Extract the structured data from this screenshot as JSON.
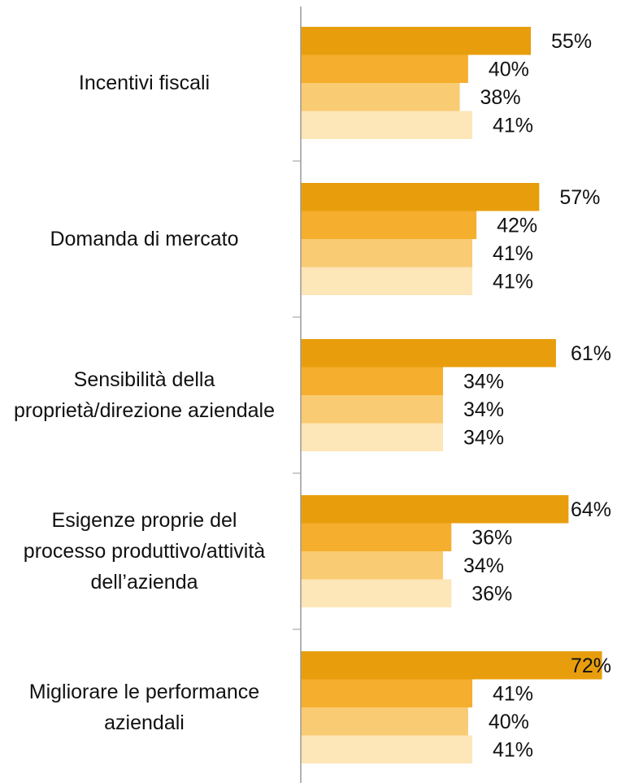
{
  "chart_data": {
    "type": "bar",
    "orientation": "horizontal",
    "categories": [
      "Incentivi fiscali",
      "Domanda di mercato",
      "Sensibilità della proprietà/direzione aziendale",
      "Esigenze proprie del processo produttivo/attività dell’azienda",
      "Migliorare le performance aziendali"
    ],
    "series": [
      {
        "color": "#e89e0c",
        "values": [
          55,
          57,
          61,
          64,
          72
        ],
        "value_labels": [
          "55%",
          "57%",
          "61%",
          "64%",
          "72%"
        ]
      },
      {
        "color": "#f5ae2d",
        "values": [
          40,
          42,
          34,
          36,
          41
        ],
        "value_labels": [
          "40%",
          "42%",
          "34%",
          "36%",
          "41%"
        ]
      },
      {
        "color": "#f9cb72",
        "values": [
          38,
          41,
          34,
          34,
          40
        ],
        "value_labels": [
          "38%",
          "41%",
          "34%",
          "34%",
          "40%"
        ]
      },
      {
        "color": "#fde6b8",
        "values": [
          41,
          41,
          34,
          36,
          41
        ],
        "value_labels": [
          "41%",
          "41%",
          "34%",
          "36%",
          "41%"
        ]
      }
    ],
    "xlim": [
      0,
      75
    ]
  }
}
